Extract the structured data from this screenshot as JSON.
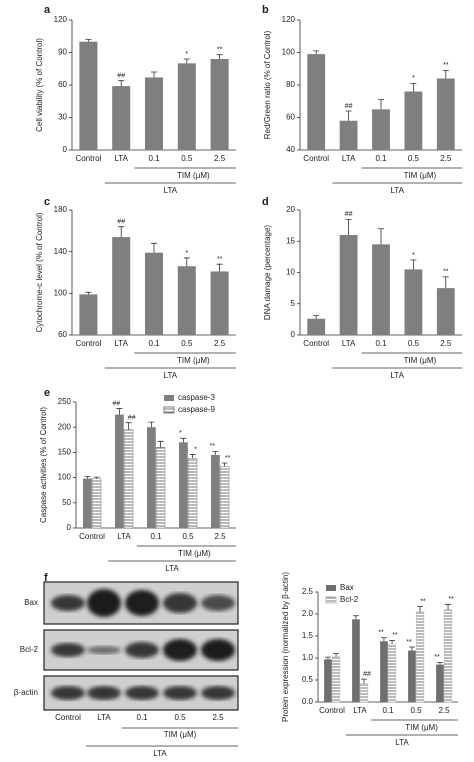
{
  "chart_data": [
    {
      "type": "bar",
      "label": "a",
      "ylabel": "Cell viability (% of Control)",
      "categories": [
        "Control",
        "LTA",
        "0.1",
        "0.5",
        "2.5"
      ],
      "group_label": "TIM (μM)",
      "outer_label": "LTA",
      "series": [
        {
          "color": "#7f7f7f",
          "values": [
            100,
            59,
            67,
            80,
            84
          ],
          "errors": [
            2,
            5,
            5,
            4,
            4
          ],
          "annotations": [
            null,
            "##",
            null,
            "*",
            "**"
          ]
        }
      ],
      "ylim": [
        0,
        120
      ],
      "yticks": [
        0,
        30,
        60,
        90,
        120
      ]
    },
    {
      "type": "bar",
      "label": "b",
      "ylabel": "Red/Green ratio (% of Control)",
      "categories": [
        "Control",
        "LTA",
        "0.1",
        "0.5",
        "2.5"
      ],
      "group_label": "TIM (μM)",
      "outer_label": "LTA",
      "series": [
        {
          "color": "#7f7f7f",
          "values": [
            99,
            58,
            65,
            76,
            84
          ],
          "errors": [
            2,
            6,
            6,
            5,
            5
          ],
          "annotations": [
            null,
            "##",
            null,
            "*",
            "**"
          ]
        }
      ],
      "ylim": [
        40,
        120
      ],
      "yticks": [
        40,
        60,
        80,
        100,
        120
      ]
    },
    {
      "type": "bar",
      "label": "c",
      "ylabel": "Cytochrome-c level (% of Control)",
      "categories": [
        "Control",
        "LTA",
        "0.1",
        "0.5",
        "2.5"
      ],
      "group_label": "TIM (μM)",
      "outer_label": "LTA",
      "series": [
        {
          "color": "#7f7f7f",
          "values": [
            99,
            154,
            139,
            126,
            121
          ],
          "errors": [
            2,
            10,
            9,
            8,
            7
          ],
          "annotations": [
            null,
            "##",
            null,
            "*",
            "**"
          ]
        }
      ],
      "ylim": [
        60,
        180
      ],
      "yticks": [
        60,
        100,
        140,
        180
      ]
    },
    {
      "type": "bar",
      "label": "d",
      "ylabel": "DNA damage (percentage)",
      "categories": [
        "Control",
        "LTA",
        "0.1",
        "0.5",
        "2.5"
      ],
      "group_label": "TIM (μM)",
      "outer_label": "LTA",
      "series": [
        {
          "color": "#7f7f7f",
          "values": [
            2.6,
            16,
            14.5,
            10.5,
            7.5
          ],
          "errors": [
            0.5,
            2.5,
            2.5,
            1.5,
            1.8
          ],
          "annotations": [
            null,
            "##",
            null,
            "*",
            "**"
          ]
        }
      ],
      "ylim": [
        0,
        20
      ],
      "yticks": [
        0,
        5,
        10,
        15,
        20
      ]
    },
    {
      "type": "bar",
      "label": "e",
      "ylabel": "Caspase activities (% of Control)",
      "categories": [
        "Control",
        "LTA",
        "0.1",
        "0.5",
        "2.5"
      ],
      "group_label": "TIM (μM)",
      "outer_label": "LTA",
      "series": [
        {
          "name": "caspase-3",
          "color": "#7f7f7f",
          "hatch": false,
          "values": [
            98,
            225,
            200,
            170,
            145
          ],
          "errors": [
            4,
            12,
            10,
            8,
            7
          ],
          "annotations": [
            null,
            "##",
            null,
            "*",
            "**"
          ]
        },
        {
          "name": "caspase-9",
          "color": "#7f7f7f",
          "hatch": true,
          "values": [
            98,
            195,
            160,
            138,
            122
          ],
          "errors": [
            3,
            14,
            12,
            8,
            7
          ],
          "annotations": [
            null,
            "##",
            null,
            "*",
            "**"
          ]
        }
      ],
      "ylim": [
        0,
        250
      ],
      "yticks": [
        0,
        50,
        100,
        150,
        200,
        250
      ],
      "legend": "top-right"
    },
    {
      "type": "bar",
      "label": "f",
      "ylabel": "Protein expression (normalized by β-actin)",
      "categories": [
        "Control",
        "LTA",
        "0.1",
        "0.5",
        "2.5"
      ],
      "group_label": "TIM (μM)",
      "outer_label": "LTA",
      "series": [
        {
          "name": "Bax",
          "color": "#6f6f6f",
          "hatch": false,
          "values": [
            0.97,
            1.88,
            1.38,
            1.17,
            0.85
          ],
          "errors": [
            0.05,
            0.08,
            0.08,
            0.08,
            0.05
          ],
          "annotations": [
            null,
            null,
            "**",
            "**",
            "**"
          ]
        },
        {
          "name": "Bcl-2",
          "color": "#bbbbbb",
          "hatch": true,
          "values": [
            1.03,
            0.42,
            1.32,
            2.05,
            2.1
          ],
          "errors": [
            0.07,
            0.1,
            0.08,
            0.12,
            0.12
          ],
          "annotations": [
            null,
            "##",
            "**",
            "**",
            "**"
          ]
        }
      ],
      "ylim": [
        0,
        2.5
      ],
      "yticks": [
        {
          "value": 0,
          "label": "0.0"
        },
        0.5,
        {
          "value": 1,
          "label": "1.0"
        },
        1.5,
        {
          "value": 2,
          "label": "2.0"
        },
        2.5
      ],
      "legend": "top-left"
    }
  ],
  "blot": {
    "rows": [
      "Bax",
      "Bcl-2",
      "β-actin"
    ],
    "categories": [
      "Control",
      "LTA",
      "0.1",
      "0.5",
      "2.5"
    ],
    "group_label": "TIM (μM)",
    "outer_label": "LTA"
  }
}
